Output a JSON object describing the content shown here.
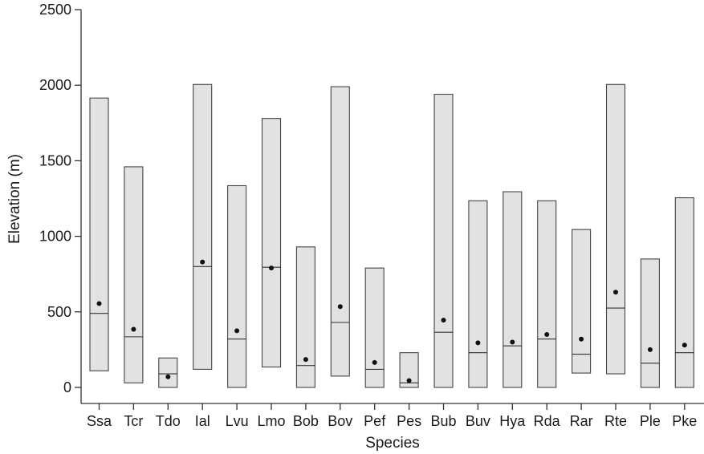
{
  "chart_data": {
    "type": "range-bar",
    "xlabel": "Species",
    "ylabel": "Elevation (m)",
    "ylim": [
      0,
      2500
    ],
    "yticks": [
      0,
      500,
      1000,
      1500,
      2000,
      2500
    ],
    "grid": false,
    "categories": [
      "Ssa",
      "Tcr",
      "Tdo",
      "Ial",
      "Lvu",
      "Lmo",
      "Bob",
      "Bov",
      "Pef",
      "Pes",
      "Bub",
      "Buv",
      "Hya",
      "Rda",
      "Rar",
      "Rte",
      "Ple",
      "Pke"
    ],
    "series": [
      {
        "min": 110,
        "max": 1915,
        "median": 490,
        "mean": 555
      },
      {
        "min": 30,
        "max": 1460,
        "median": 335,
        "mean": 385
      },
      {
        "min": 0,
        "max": 195,
        "median": 90,
        "mean": 70
      },
      {
        "min": 120,
        "max": 2005,
        "median": 800,
        "mean": 830
      },
      {
        "min": 0,
        "max": 1335,
        "median": 320,
        "mean": 375
      },
      {
        "min": 135,
        "max": 1780,
        "median": 795,
        "mean": 790
      },
      {
        "min": 0,
        "max": 930,
        "median": 145,
        "mean": 185
      },
      {
        "min": 75,
        "max": 1990,
        "median": 430,
        "mean": 535
      },
      {
        "min": 0,
        "max": 790,
        "median": 120,
        "mean": 165
      },
      {
        "min": 0,
        "max": 230,
        "median": 30,
        "mean": 45
      },
      {
        "min": 0,
        "max": 1940,
        "median": 365,
        "mean": 445
      },
      {
        "min": 0,
        "max": 1235,
        "median": 230,
        "mean": 295
      },
      {
        "min": 0,
        "max": 1295,
        "median": 275,
        "mean": 300
      },
      {
        "min": 0,
        "max": 1235,
        "median": 320,
        "mean": 350
      },
      {
        "min": 95,
        "max": 1045,
        "median": 220,
        "mean": 320
      },
      {
        "min": 90,
        "max": 2005,
        "median": 525,
        "mean": 630
      },
      {
        "min": 0,
        "max": 850,
        "median": 160,
        "mean": 250
      },
      {
        "min": 0,
        "max": 1255,
        "median": 230,
        "mean": 280
      }
    ]
  }
}
